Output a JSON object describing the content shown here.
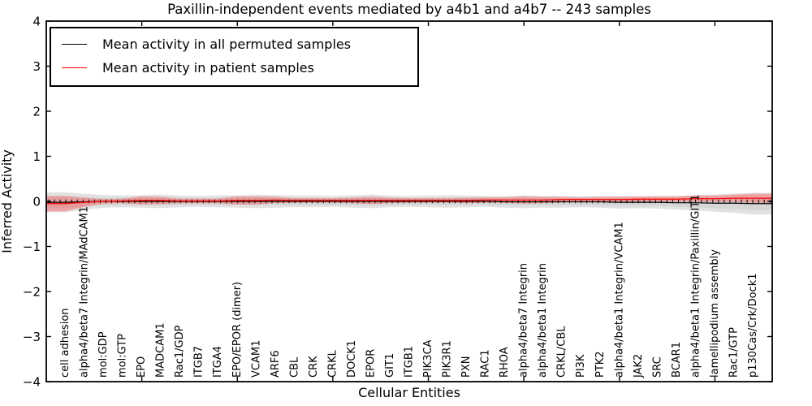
{
  "title": "Paxillin-independent events mediated by a4b1 and a4b7 -- 243 samples",
  "axes": {
    "xlabel": "Cellular Entities",
    "ylabel": "Inferred Activity",
    "yticks": [
      {
        "v": 4,
        "label": "4"
      },
      {
        "v": 3,
        "label": "3"
      },
      {
        "v": 2,
        "label": "2"
      },
      {
        "v": 1,
        "label": "1"
      },
      {
        "v": 0,
        "label": "0"
      },
      {
        "v": -1,
        "label": "−1"
      },
      {
        "v": -2,
        "label": "−2"
      },
      {
        "v": -3,
        "label": "−3"
      },
      {
        "v": -4,
        "label": "−4"
      }
    ]
  },
  "legend": {
    "items": [
      {
        "label": "Mean activity in all permuted samples",
        "color": "#000000"
      },
      {
        "label": "Mean activity in patient samples",
        "color": "#ff0000"
      }
    ],
    "position": "upper-left"
  },
  "chart_data": {
    "type": "line",
    "title": "Paxillin-independent events mediated by a4b1 and a4b7 -- 243 samples",
    "xlabel": "Cellular Entities",
    "ylabel": "Inferred Activity",
    "ylim": [
      -4,
      4
    ],
    "xlim": [
      0,
      38
    ],
    "grid": false,
    "legend_position": "upper-left",
    "zero_line": true,
    "xticks_units": [
      0,
      5,
      10,
      15,
      20,
      25,
      30,
      35
    ],
    "categories": [
      "cell adhesion",
      "alpha4/beta7 Integrin/MAdCAM1",
      "mol:GDP",
      "mol:GTP",
      "EPO",
      "MADCAM1",
      "Rac1/GDP",
      "ITGB7",
      "ITGA4",
      "EPO/EPOR (dimer)",
      "VCAM1",
      "ARF6",
      "CBL",
      "CRK",
      "CRKL",
      "DOCK1",
      "EPOR",
      "GIT1",
      "ITGB1",
      "PIK3CA",
      "PIK3R1",
      "PXN",
      "RAC1",
      "RHOA",
      "alpha4/beta7 Integrin",
      "alpha4/beta1 Integrin",
      "CRKL/CBL",
      "PI3K",
      "PTK2",
      "alpha4/beta1 Integrin/VCAM1",
      "JAK2",
      "SRC",
      "BCAR1",
      "alpha4/beta1 Integrin/Paxillin/GIT1",
      "lamellipodium assembly",
      "Rac1/GTP",
      "p130Cas/Crk/Dock1"
    ],
    "series": [
      {
        "name": "Mean activity in all permuted samples",
        "color": "#000000",
        "band_color": "#d9d9d9",
        "values": [
          -0.02,
          -0.01,
          0.0,
          0.0,
          0.0,
          0.0,
          0.0,
          0.0,
          0.0,
          0.0,
          0.0,
          0.0,
          0.0,
          0.0,
          0.0,
          0.0,
          0.0,
          0.0,
          0.0,
          0.0,
          0.0,
          0.0,
          0.0,
          -0.01,
          -0.01,
          -0.01,
          -0.01,
          -0.01,
          -0.01,
          -0.02,
          -0.02,
          -0.02,
          -0.03,
          -0.03,
          -0.04,
          -0.04,
          -0.05
        ],
        "band_half_width": [
          0.22,
          0.18,
          0.14,
          0.13,
          0.14,
          0.15,
          0.13,
          0.12,
          0.13,
          0.14,
          0.15,
          0.14,
          0.13,
          0.13,
          0.12,
          0.14,
          0.15,
          0.13,
          0.12,
          0.13,
          0.14,
          0.13,
          0.12,
          0.13,
          0.14,
          0.13,
          0.13,
          0.12,
          0.13,
          0.14,
          0.13,
          0.14,
          0.15,
          0.17,
          0.19,
          0.21,
          0.24
        ]
      },
      {
        "name": "Mean activity in patient samples",
        "color": "#ff0000",
        "band_color": "rgba(255,50,50,0.35)",
        "values": [
          -0.05,
          -0.02,
          0.0,
          0.01,
          0.02,
          0.02,
          0.01,
          0.01,
          0.01,
          0.02,
          0.02,
          0.03,
          0.02,
          0.02,
          0.02,
          0.02,
          0.02,
          0.02,
          0.02,
          0.02,
          0.02,
          0.02,
          0.03,
          0.03,
          0.03,
          0.03,
          0.04,
          0.04,
          0.04,
          0.04,
          0.05,
          0.05,
          0.05,
          0.06,
          0.06,
          0.07,
          0.07
        ],
        "band_half_width": [
          0.17,
          0.1,
          0.05,
          0.05,
          0.09,
          0.08,
          0.05,
          0.05,
          0.05,
          0.09,
          0.09,
          0.07,
          0.05,
          0.05,
          0.05,
          0.06,
          0.08,
          0.06,
          0.05,
          0.05,
          0.05,
          0.06,
          0.06,
          0.06,
          0.08,
          0.07,
          0.06,
          0.05,
          0.06,
          0.06,
          0.06,
          0.06,
          0.06,
          0.07,
          0.07,
          0.08,
          0.1
        ]
      }
    ]
  }
}
